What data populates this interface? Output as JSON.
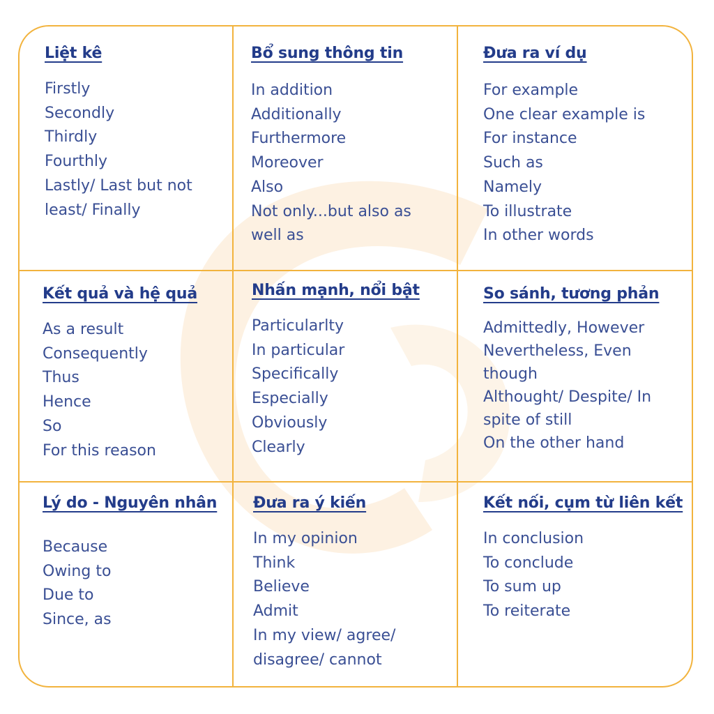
{
  "colors": {
    "border": "#f2b33d",
    "heading": "#233c8a",
    "text": "#3a4f94",
    "watermark": "#fdf1e2"
  },
  "watermark_icon": "logo-watermark",
  "cells": [
    {
      "title": "Liệt kê",
      "items": [
        "Firstly",
        "Secondly",
        "Thirdly",
        "Fourthly",
        "Lastly/ Last but not",
        "least/ Finally"
      ]
    },
    {
      "title": "Bổ sung thông tin",
      "items": [
        "In addition",
        "Additionally",
        "Furthermore",
        "Moreover",
        "Also",
        "Not only...but also as",
        "well as"
      ]
    },
    {
      "title": "Đưa ra ví dụ",
      "items": [
        "For example",
        "One clear example is",
        "For instance",
        "Such as",
        "Namely",
        "To illustrate",
        "In other words"
      ]
    },
    {
      "title": "Kết quả và hệ quả",
      "items": [
        "As a result",
        "Consequently",
        "Thus",
        "Hence",
        "So",
        "For this reason"
      ]
    },
    {
      "title": "Nhấn mạnh, nổi bật",
      "items": [
        "Particularlty",
        "In particular",
        "Specifically",
        "Especially",
        "Obviously",
        "Clearly"
      ]
    },
    {
      "title": "So sánh, tương phản",
      "items": [
        "Admittedly, However",
        "Nevertheless, Even",
        "though",
        "Althought/ Despite/ In",
        "spite of still",
        "On the other hand"
      ]
    },
    {
      "title": "Lý do - Nguyên nhân",
      "items": [
        "Because",
        "Owing to",
        "Due to",
        "Since, as"
      ]
    },
    {
      "title": "Đưa ra ý kiến",
      "items": [
        "In my opinion",
        "Think",
        "Believe",
        "Admit",
        "In my view/ agree/",
        "disagree/ cannot"
      ]
    },
    {
      "title": "Kết nối, cụm từ liên kết",
      "items": [
        "In conclusion",
        "To conclude",
        "To sum up",
        "To reiterate"
      ]
    }
  ]
}
